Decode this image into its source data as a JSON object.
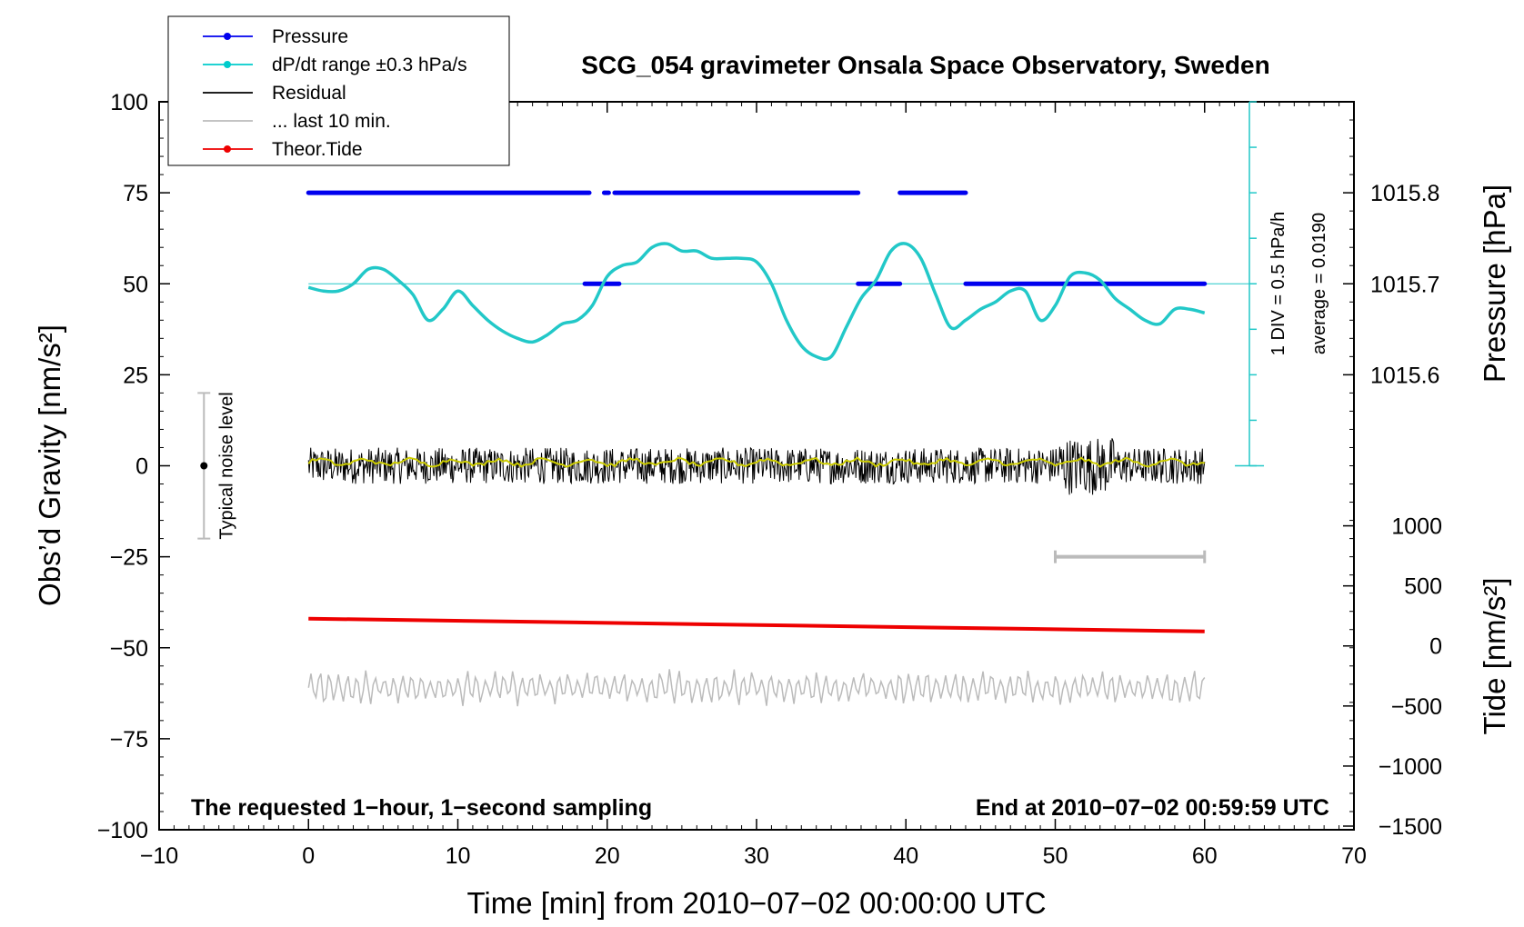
{
  "chart_data": {
    "type": "line",
    "title": "SCG_054 gravimeter Onsala Space Observatory, Sweden",
    "xlabel": "Time [min] from 2010−07−02 00:00:00 UTC",
    "ylabel_left": "Obs’d Gravity [nm/s²]",
    "ylabel_right_top": "Pressure [hPa]",
    "ylabel_right_bottom": "Tide [nm/s²]",
    "xlim": [
      -10,
      70
    ],
    "ylim": [
      -100,
      100
    ],
    "x_ticks": [
      -10,
      0,
      10,
      20,
      30,
      40,
      50,
      60,
      70
    ],
    "x_tick_labels": [
      "−10",
      "0",
      "10",
      "20",
      "30",
      "40",
      "50",
      "60",
      "70"
    ],
    "y_ticks": [
      100,
      75,
      50,
      25,
      0,
      -25,
      -50,
      -75,
      -100
    ],
    "y_tick_labels": [
      "100",
      "75",
      "50",
      "25",
      "0",
      "−25",
      "−50",
      "−75",
      "−100"
    ],
    "pressure_axis": {
      "ticks": [
        {
          "gravity": 75,
          "label": "1015.8"
        },
        {
          "gravity": 50,
          "label": "1015.7"
        },
        {
          "gravity": 25,
          "label": "1015.6"
        }
      ]
    },
    "tide_axis": {
      "ticks": [
        {
          "gravity": -16.5,
          "label": "1000"
        },
        {
          "gravity": -33.0,
          "label": "500"
        },
        {
          "gravity": -49.5,
          "label": "0"
        },
        {
          "gravity": -66.0,
          "label": "−500"
        },
        {
          "gravity": -82.5,
          "label": "−1000"
        },
        {
          "gravity": -99.0,
          "label": "−1500"
        }
      ]
    },
    "legend": [
      {
        "label": "Pressure",
        "color": "#0000ee",
        "marker": true
      },
      {
        "label": "dP/dt range ±0.3 hPa/s",
        "color": "#00cccc",
        "marker": true
      },
      {
        "label": "Residual",
        "color": "#000000",
        "marker": false
      },
      {
        "label": "... last 10 min.",
        "color": "#bbbbbb",
        "marker": false
      },
      {
        "label": "Theor.Tide",
        "color": "#ee0000",
        "marker": true
      }
    ],
    "series": [
      {
        "name": "Pressure",
        "color": "#0000ee",
        "segments": [
          {
            "x": [
              0,
              18.8
            ],
            "y": 75
          },
          {
            "x": [
              19.8,
              20.1
            ],
            "y": 75
          },
          {
            "x": [
              20.5,
              36.8
            ],
            "y": 75
          },
          {
            "x": [
              39.6,
              44.0
            ],
            "y": 75
          },
          {
            "x": [
              18.5,
              20.8
            ],
            "y": 50
          },
          {
            "x": [
              36.8,
              39.6
            ],
            "y": 50
          },
          {
            "x": [
              44.0,
              60.0
            ],
            "y": 50
          }
        ]
      },
      {
        "name": "dP/dt",
        "color": "#22c8c8",
        "reference_level": 50,
        "x": [
          0,
          1,
          2,
          3,
          4,
          5,
          6,
          7,
          8,
          9,
          10,
          11,
          12,
          13,
          14,
          15,
          16,
          17,
          18,
          19,
          20,
          21,
          22,
          23,
          24,
          25,
          26,
          27,
          28,
          29,
          30,
          31,
          32,
          33,
          34,
          35,
          36,
          37,
          38,
          39,
          40,
          41,
          42,
          43,
          44,
          45,
          46,
          47,
          48,
          49,
          50,
          51,
          52,
          53,
          54,
          55,
          56,
          57,
          58,
          59,
          60
        ],
        "y": [
          49,
          48,
          48,
          50,
          54,
          54,
          51,
          47,
          40,
          43,
          48,
          44,
          40,
          37,
          35,
          34,
          36,
          39,
          40,
          44,
          52,
          55,
          56,
          60,
          61,
          59,
          59,
          57,
          57,
          57,
          56,
          50,
          40,
          33,
          30,
          30,
          38,
          46,
          51,
          59,
          61,
          57,
          47,
          38,
          40,
          43,
          45,
          48,
          48,
          40,
          44,
          52,
          53,
          51,
          46,
          43,
          40,
          39,
          43,
          43,
          42
        ]
      },
      {
        "name": "Residual",
        "color": "#000000",
        "x_range": [
          0,
          60
        ],
        "mean": 0,
        "amplitude": 5
      },
      {
        "name": "Residual smoothed",
        "color": "#cccc00",
        "x_range": [
          0,
          60
        ],
        "mean": 1
      },
      {
        "name": "Theor.Tide",
        "color": "#ee0000",
        "x": [
          0,
          60
        ],
        "y": [
          -42,
          -45.5
        ]
      },
      {
        "name": "... last 10 min.",
        "color": "#bbbbbb",
        "x_range": [
          0,
          60
        ],
        "mean": -61,
        "amplitude": 4
      }
    ],
    "annotations": {
      "noise_bar": {
        "x": -7,
        "y_range": [
          -20,
          20
        ],
        "label": "Typical noise level"
      },
      "last10_bar": {
        "x_range": [
          50,
          60
        ],
        "y": -25
      },
      "pressure_scale": {
        "x": 63,
        "y_range": [
          0,
          100
        ],
        "label1": "1 DIV = 0.5 hPa/h",
        "label2": "average = 0.0190"
      },
      "bottom_left": "The requested 1−hour, 1−second sampling",
      "bottom_right": "End at 2010−07−02 00:59:59 UTC"
    }
  }
}
